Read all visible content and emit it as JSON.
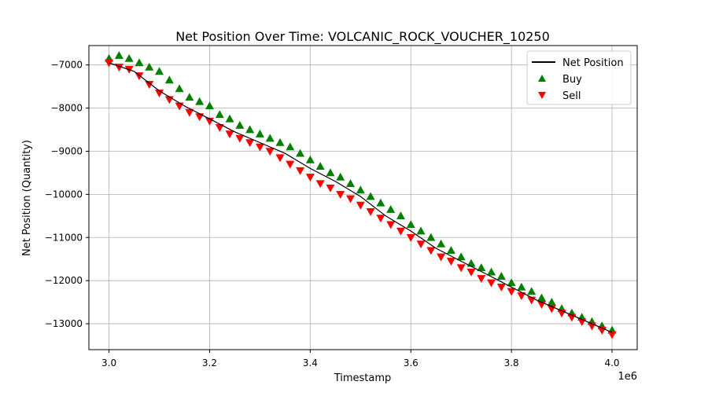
{
  "chart_data": {
    "type": "scatter",
    "title": "Net Position Over Time: VOLCANIC_ROCK_VOUCHER_10250",
    "xlabel": "Timestamp",
    "ylabel": "Net Position (Quantity)",
    "x_offset_label": "1e6",
    "xlim": [
      2.96,
      4.05
    ],
    "ylim": [
      -13600,
      -6550
    ],
    "x_ticks": [
      3.0,
      3.2,
      3.4,
      3.6,
      3.8,
      4.0
    ],
    "x_tick_labels": [
      "3.0",
      "3.2",
      "3.4",
      "3.6",
      "3.8",
      "4.0"
    ],
    "y_ticks": [
      -7000,
      -8000,
      -9000,
      -10000,
      -11000,
      -12000,
      -13000
    ],
    "y_tick_labels": [
      "−7000",
      "−8000",
      "−9000",
      "−10000",
      "−11000",
      "−12000",
      "−13000"
    ],
    "grid": true,
    "legend_position": "top-right",
    "legend": [
      {
        "label": "Net Position",
        "marker": "line",
        "color": "#000000"
      },
      {
        "label": "Buy",
        "marker": "triangle-up",
        "color": "#008000"
      },
      {
        "label": "Sell",
        "marker": "triangle-down",
        "color": "#ff0000"
      }
    ],
    "series": [
      {
        "name": "Net Position",
        "color": "#000000",
        "x": [
          3.0,
          3.05,
          3.1,
          3.15,
          3.2,
          3.25,
          3.3,
          3.35,
          3.4,
          3.45,
          3.5,
          3.55,
          3.6,
          3.65,
          3.7,
          3.75,
          3.8,
          3.85,
          3.9,
          3.95,
          4.0
        ],
        "y": [
          -6950,
          -7150,
          -7600,
          -7950,
          -8250,
          -8550,
          -8800,
          -9050,
          -9400,
          -9700,
          -10050,
          -10500,
          -10850,
          -11250,
          -11550,
          -11850,
          -12150,
          -12450,
          -12700,
          -12950,
          -13200
        ]
      },
      {
        "name": "Buy",
        "color": "#008000",
        "marker": "triangle-up",
        "x": [
          3.0,
          3.02,
          3.04,
          3.06,
          3.08,
          3.1,
          3.12,
          3.14,
          3.16,
          3.18,
          3.2,
          3.22,
          3.24,
          3.26,
          3.28,
          3.3,
          3.32,
          3.34,
          3.36,
          3.38,
          3.4,
          3.42,
          3.44,
          3.46,
          3.48,
          3.5,
          3.52,
          3.54,
          3.56,
          3.58,
          3.6,
          3.62,
          3.64,
          3.66,
          3.68,
          3.7,
          3.72,
          3.74,
          3.76,
          3.78,
          3.8,
          3.82,
          3.84,
          3.86,
          3.88,
          3.9,
          3.92,
          3.94,
          3.96,
          3.98,
          4.0
        ],
        "y": [
          -6850,
          -6780,
          -6850,
          -6950,
          -7050,
          -7150,
          -7350,
          -7550,
          -7750,
          -7850,
          -7950,
          -8150,
          -8250,
          -8400,
          -8500,
          -8600,
          -8700,
          -8800,
          -8900,
          -9050,
          -9200,
          -9350,
          -9500,
          -9600,
          -9750,
          -9900,
          -10050,
          -10200,
          -10350,
          -10500,
          -10700,
          -10850,
          -11000,
          -11150,
          -11300,
          -11450,
          -11600,
          -11700,
          -11800,
          -11900,
          -12050,
          -12150,
          -12250,
          -12400,
          -12500,
          -12650,
          -12750,
          -12850,
          -12950,
          -13050,
          -13150
        ]
      },
      {
        "name": "Sell",
        "color": "#ff0000",
        "marker": "triangle-down",
        "x": [
          3.0,
          3.02,
          3.04,
          3.06,
          3.08,
          3.1,
          3.12,
          3.14,
          3.16,
          3.18,
          3.2,
          3.22,
          3.24,
          3.26,
          3.28,
          3.3,
          3.32,
          3.34,
          3.36,
          3.38,
          3.4,
          3.42,
          3.44,
          3.46,
          3.48,
          3.5,
          3.52,
          3.54,
          3.56,
          3.58,
          3.6,
          3.62,
          3.64,
          3.66,
          3.68,
          3.7,
          3.72,
          3.74,
          3.76,
          3.78,
          3.8,
          3.82,
          3.84,
          3.86,
          3.88,
          3.9,
          3.92,
          3.94,
          3.96,
          3.98,
          4.0
        ],
        "y": [
          -6950,
          -7050,
          -7100,
          -7250,
          -7450,
          -7650,
          -7800,
          -7950,
          -8100,
          -8200,
          -8300,
          -8450,
          -8600,
          -8700,
          -8800,
          -8900,
          -9000,
          -9150,
          -9300,
          -9450,
          -9600,
          -9750,
          -9850,
          -10000,
          -10100,
          -10250,
          -10400,
          -10550,
          -10700,
          -10850,
          -11000,
          -11150,
          -11300,
          -11450,
          -11550,
          -11700,
          -11800,
          -11950,
          -12050,
          -12150,
          -12250,
          -12350,
          -12450,
          -12550,
          -12650,
          -12750,
          -12850,
          -12950,
          -13050,
          -13150,
          -13250
        ]
      }
    ]
  }
}
